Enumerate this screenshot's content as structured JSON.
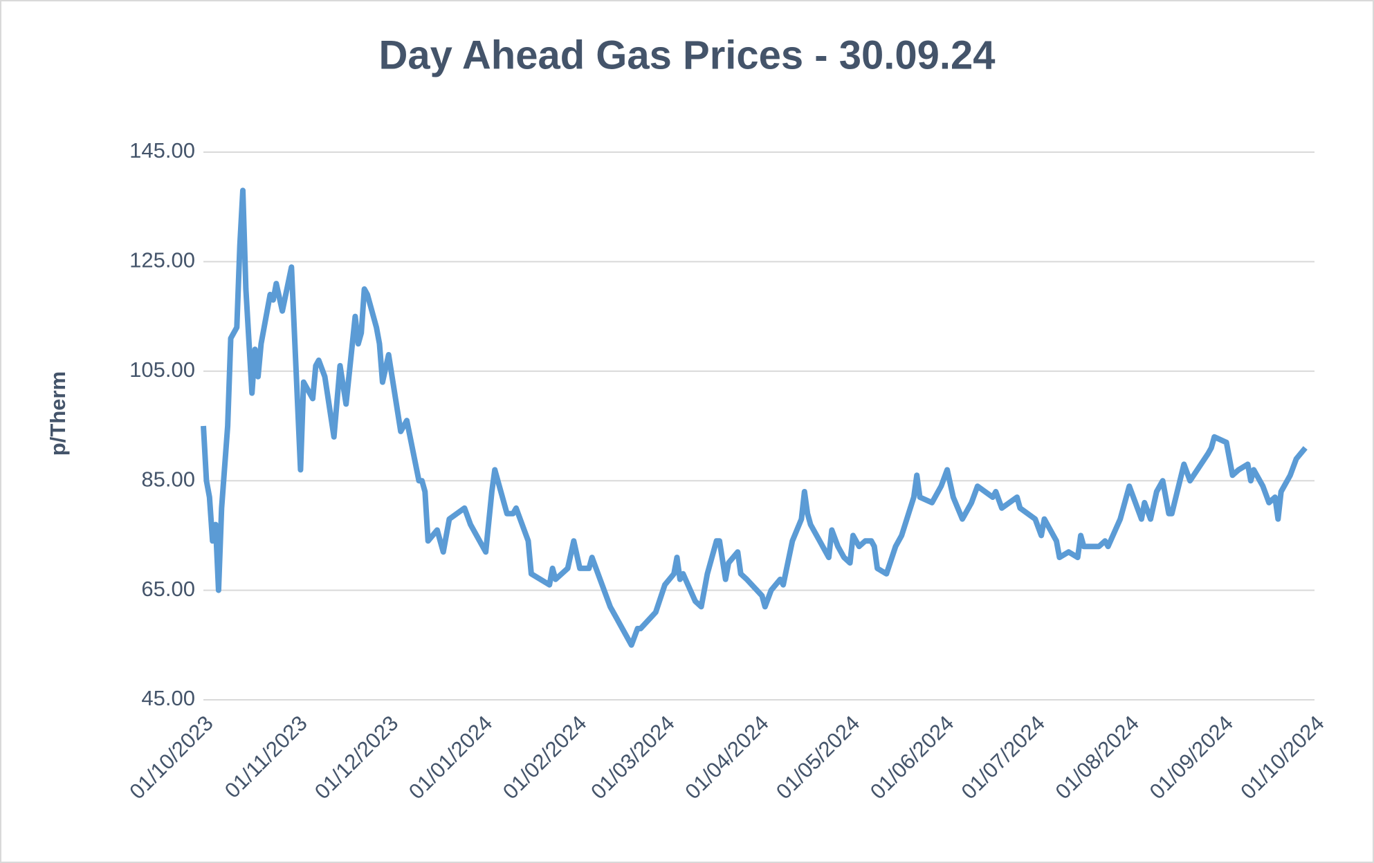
{
  "chart_data": {
    "type": "line",
    "title": "Day Ahead Gas Prices - 30.09.24",
    "ylabel": "p/Therm",
    "x": [
      "01/10/2023",
      "02/10/2023",
      "03/10/2023",
      "04/10/2023",
      "05/10/2023",
      "06/10/2023",
      "07/10/2023",
      "09/10/2023",
      "10/10/2023",
      "12/10/2023",
      "13/10/2023",
      "14/10/2023",
      "15/10/2023",
      "17/10/2023",
      "18/10/2023",
      "19/10/2023",
      "20/10/2023",
      "23/10/2023",
      "24/10/2023",
      "25/10/2023",
      "27/10/2023",
      "30/10/2023",
      "02/11/2023",
      "03/11/2023",
      "06/11/2023",
      "07/11/2023",
      "08/11/2023",
      "10/11/2023",
      "13/11/2023",
      "15/11/2023",
      "17/11/2023",
      "20/11/2023",
      "21/11/2023",
      "22/11/2023",
      "23/11/2023",
      "24/11/2023",
      "27/11/2023",
      "28/11/2023",
      "29/11/2023",
      "01/12/2023",
      "05/12/2023",
      "07/12/2023",
      "11/12/2023",
      "12/12/2023",
      "13/12/2023",
      "14/12/2023",
      "17/12/2023",
      "19/12/2023",
      "21/12/2023",
      "26/12/2023",
      "28/12/2023",
      "02/01/2024",
      "04/01/2024",
      "05/01/2024",
      "09/01/2024",
      "11/01/2024",
      "12/01/2024",
      "16/01/2024",
      "17/01/2024",
      "23/01/2024",
      "24/01/2024",
      "25/01/2024",
      "29/01/2024",
      "31/01/2024",
      "02/02/2024",
      "05/02/2024",
      "06/02/2024",
      "08/02/2024",
      "12/02/2024",
      "14/02/2024",
      "19/02/2024",
      "21/02/2024",
      "22/02/2024",
      "27/02/2024",
      "01/03/2024",
      "04/03/2024",
      "05/03/2024",
      "06/03/2024",
      "07/03/2024",
      "11/03/2024",
      "13/03/2024",
      "15/03/2024",
      "18/03/2024",
      "19/03/2024",
      "21/03/2024",
      "22/03/2024",
      "25/03/2024",
      "26/03/2024",
      "28/03/2024",
      "02/04/2024",
      "03/04/2024",
      "05/04/2024",
      "08/04/2024",
      "09/04/2024",
      "12/04/2024",
      "15/04/2024",
      "16/04/2024",
      "17/04/2024",
      "18/04/2024",
      "21/04/2024",
      "24/04/2024",
      "25/04/2024",
      "27/04/2024",
      "29/04/2024",
      "01/05/2024",
      "02/05/2024",
      "04/05/2024",
      "06/05/2024",
      "08/05/2024",
      "09/05/2024",
      "10/05/2024",
      "13/05/2024",
      "16/05/2024",
      "18/05/2024",
      "22/05/2024",
      "23/05/2024",
      "24/05/2024",
      "28/05/2024",
      "31/05/2024",
      "02/06/2024",
      "04/06/2024",
      "07/06/2024",
      "10/06/2024",
      "12/06/2024",
      "17/06/2024",
      "18/06/2024",
      "20/06/2024",
      "25/06/2024",
      "26/06/2024",
      "01/07/2024",
      "03/07/2024",
      "04/07/2024",
      "08/07/2024",
      "09/07/2024",
      "12/07/2024",
      "15/07/2024",
      "16/07/2024",
      "17/07/2024",
      "22/07/2024",
      "24/07/2024",
      "25/07/2024",
      "29/07/2024",
      "01/08/2024",
      "05/08/2024",
      "06/08/2024",
      "08/08/2024",
      "10/08/2024",
      "12/08/2024",
      "14/08/2024",
      "15/08/2024",
      "19/08/2024",
      "21/08/2024",
      "27/08/2024",
      "28/08/2024",
      "29/08/2024",
      "02/09/2024",
      "04/09/2024",
      "06/09/2024",
      "09/09/2024",
      "10/09/2024",
      "11/09/2024",
      "14/09/2024",
      "16/09/2024",
      "18/09/2024",
      "19/09/2024",
      "20/09/2024",
      "23/09/2024",
      "25/09/2024",
      "28/09/2024"
    ],
    "series": [
      {
        "name": "Day Ahead",
        "color": "#5b9bd5",
        "values": [
          95,
          85,
          82,
          74,
          77,
          65,
          80,
          95,
          111,
          113,
          128,
          138,
          120,
          101,
          109,
          104,
          110,
          119,
          118,
          121,
          116,
          124,
          87,
          103,
          100,
          106,
          107,
          104,
          93,
          106,
          99,
          115,
          110,
          112,
          120,
          119,
          113,
          110,
          103,
          108,
          94,
          96,
          85,
          85,
          83,
          74,
          76,
          72,
          78,
          80,
          77,
          72,
          83,
          87,
          79,
          79,
          80,
          74,
          68,
          66,
          69,
          67,
          69,
          74,
          69,
          69,
          71,
          68,
          62,
          60,
          55,
          58,
          58,
          61,
          66,
          68,
          71,
          67,
          68,
          63,
          62,
          68,
          74,
          74,
          67,
          70,
          72,
          68,
          67,
          64,
          62,
          65,
          67,
          66,
          74,
          78,
          83,
          79,
          77,
          74,
          71,
          76,
          73,
          71,
          70,
          75,
          73,
          74,
          74,
          73,
          69,
          68,
          73,
          75,
          82,
          86,
          82,
          81,
          84,
          87,
          82,
          78,
          81,
          84,
          82,
          83,
          80,
          82,
          80,
          78,
          75,
          78,
          74,
          71,
          72,
          71,
          75,
          73,
          73,
          74,
          73,
          78,
          84,
          78,
          81,
          78,
          83,
          85,
          79,
          79,
          88,
          85,
          90,
          91,
          93,
          92,
          86,
          87,
          88,
          85,
          87,
          84,
          81,
          82,
          78,
          83,
          86,
          89,
          91
        ]
      }
    ],
    "xlim": [
      "01/10/2023",
      "01/10/2024"
    ],
    "xticks": [
      "01/10/2023",
      "01/11/2023",
      "01/12/2023",
      "01/01/2024",
      "01/02/2024",
      "01/03/2024",
      "01/04/2024",
      "01/05/2024",
      "01/06/2024",
      "01/07/2024",
      "01/08/2024",
      "01/09/2024",
      "01/10/2024"
    ],
    "ylim": [
      45,
      145
    ],
    "yticks": [
      {
        "value": 45,
        "label": "45.00"
      },
      {
        "value": 65,
        "label": "65.00"
      },
      {
        "value": 85,
        "label": "85.00"
      },
      {
        "value": 105,
        "label": "105.00"
      },
      {
        "value": 125,
        "label": "125.00"
      },
      {
        "value": 145,
        "label": "145.00"
      }
    ],
    "grid": true
  }
}
